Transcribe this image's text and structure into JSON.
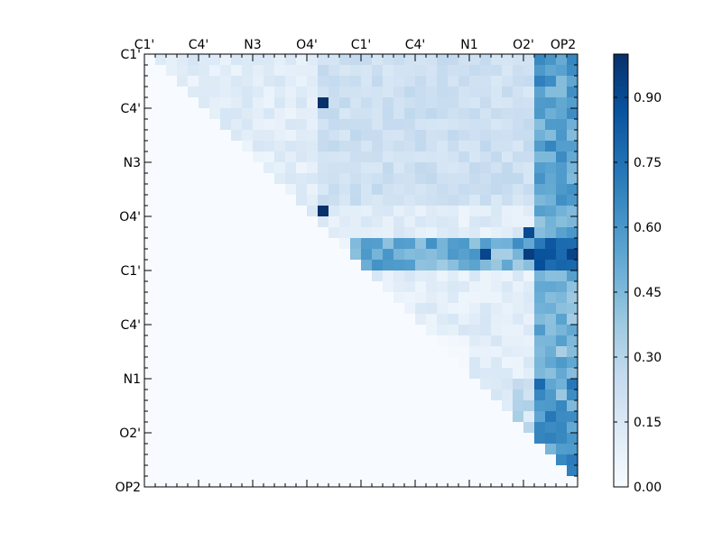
{
  "chart_data": {
    "type": "heatmap",
    "title": "",
    "xlabel": "",
    "ylabel": "",
    "n": 40,
    "tick_indices": [
      0,
      5,
      10,
      15,
      20,
      25,
      30,
      35,
      40
    ],
    "x_tick_labels": [
      "C1'",
      "C4'",
      "N3",
      "O4'",
      "C1'",
      "C4'",
      "N1",
      "O2'",
      "OP2"
    ],
    "y_tick_labels": [
      "C1'",
      "C4'",
      "N3",
      "O4'",
      "C1'",
      "C4'",
      "N1",
      "O2'",
      "OP2"
    ],
    "colorbar": {
      "vmin": 0.0,
      "vmax": 1.0,
      "ticks": [
        0.0,
        0.15,
        0.3,
        0.45,
        0.6,
        0.75,
        0.9
      ],
      "tick_labels": [
        "0.00",
        "0.15",
        "0.30",
        "0.45",
        "0.60",
        "0.75",
        "0.90"
      ],
      "colormap": "Blues",
      "stops": [
        "#f7fbff",
        "#deebf7",
        "#c6dbef",
        "#9ecae1",
        "#6baed6",
        "#4292c6",
        "#2171b5",
        "#08519c",
        "#08306b"
      ]
    },
    "empty_value": 0.0,
    "notable_cells": [
      {
        "row": 4,
        "col": 16,
        "value": 1.0
      },
      {
        "row": 14,
        "col": 16,
        "value": 1.0
      },
      {
        "row": 18,
        "col": 31,
        "value": 0.92
      },
      {
        "row": 18,
        "col": 35,
        "value": 0.95
      },
      {
        "row": 16,
        "col": 35,
        "value": 0.9
      }
    ],
    "upper_triangle": "values shown for cells above the diagonal (col > row); lower triangle is 0"
  }
}
